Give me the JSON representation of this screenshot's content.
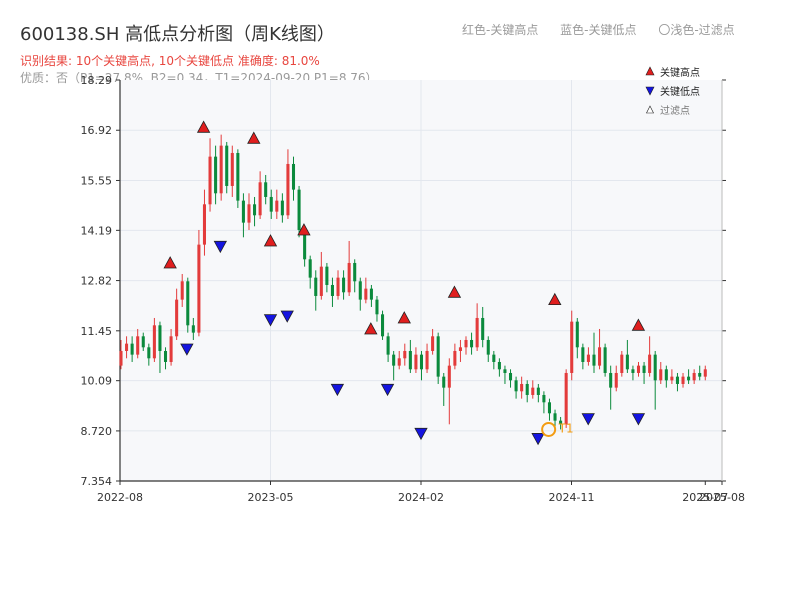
{
  "header": {
    "title": "600138.SH 高低点分析图（周K线图）",
    "subtitle": "识别结果: 10个关键高点, 10个关键低点   准确度: 81.0%",
    "note": "优质：否（P1=27.8%, B2=0.34，T1=2024-09-20 P1=8.76）",
    "legend_red": "红色-关键高点",
    "legend_blue": "蓝色-关键低点",
    "legend_light": "〇浅色-过滤点"
  },
  "colors": {
    "up": "#e33b3b",
    "down": "#0b8a3c",
    "high_marker": "#e01e1e",
    "low_marker": "#1414e0",
    "t1_ring": "#f39c12",
    "grid": "#e3e7ee",
    "plot_bg": "#f7f8fa",
    "axis": "#333333"
  },
  "chart_data": {
    "type": "candlestick",
    "title": "600138.SH 高低点分析图（周K线图）",
    "y_ticks": [
      "18.29",
      "16.92",
      "15.55",
      "14.19",
      "12.82",
      "11.45",
      "10.09",
      "8.720",
      "7.354"
    ],
    "ylim": [
      7.354,
      18.29
    ],
    "x_ticks": [
      "2022-08",
      "2023-05",
      "2024-02",
      "2024-11",
      "2025-07",
      "2025-08"
    ],
    "xlim": [
      "2022-08",
      "2025-08"
    ],
    "grid": true,
    "legend_position": "top-right",
    "legend": [
      "关键高点",
      "关键低点",
      "过滤点"
    ],
    "t1_label": "T1",
    "t1": {
      "date": "2024-09-20",
      "price": 8.76
    },
    "key_highs": [
      {
        "date": "2022-11",
        "price": 13.0
      },
      {
        "date": "2023-01",
        "price": 16.7
      },
      {
        "date": "2023-04",
        "price": 16.4
      },
      {
        "date": "2023-05",
        "price": 13.6
      },
      {
        "date": "2023-07",
        "price": 13.9
      },
      {
        "date": "2023-11",
        "price": 11.2
      },
      {
        "date": "2024-01",
        "price": 11.5
      },
      {
        "date": "2024-04",
        "price": 12.2
      },
      {
        "date": "2024-10",
        "price": 12.0
      },
      {
        "date": "2025-03",
        "price": 11.3
      }
    ],
    "key_lows": [
      {
        "date": "2022-12",
        "price": 11.2
      },
      {
        "date": "2023-02",
        "price": 14.0
      },
      {
        "date": "2023-05",
        "price": 12.0
      },
      {
        "date": "2023-06",
        "price": 12.1
      },
      {
        "date": "2023-09",
        "price": 10.1
      },
      {
        "date": "2023-12",
        "price": 10.1
      },
      {
        "date": "2024-02",
        "price": 8.9
      },
      {
        "date": "2024-09",
        "price": 8.76
      },
      {
        "date": "2024-12",
        "price": 9.3
      },
      {
        "date": "2025-03",
        "price": 9.3
      }
    ],
    "candles": [
      [
        10.5,
        10.9,
        11.2,
        10.4
      ],
      [
        10.9,
        11.1,
        11.3,
        10.7
      ],
      [
        11.1,
        10.8,
        11.3,
        10.6
      ],
      [
        10.8,
        11.3,
        11.5,
        10.7
      ],
      [
        11.3,
        11.0,
        11.4,
        10.9
      ],
      [
        11.0,
        10.7,
        11.1,
        10.5
      ],
      [
        10.7,
        11.6,
        11.8,
        10.6
      ],
      [
        11.6,
        10.9,
        11.7,
        10.3
      ],
      [
        10.9,
        10.6,
        11.0,
        10.4
      ],
      [
        10.6,
        11.3,
        11.5,
        10.5
      ],
      [
        11.3,
        12.3,
        12.6,
        11.2
      ],
      [
        12.3,
        12.8,
        13.0,
        12.1
      ],
      [
        12.8,
        11.6,
        12.9,
        11.4
      ],
      [
        11.6,
        11.4,
        11.8,
        11.2
      ],
      [
        11.4,
        13.8,
        14.2,
        11.3
      ],
      [
        13.8,
        14.9,
        15.3,
        13.5
      ],
      [
        14.9,
        16.2,
        16.7,
        14.7
      ],
      [
        16.2,
        15.2,
        16.5,
        14.9
      ],
      [
        15.2,
        16.5,
        16.8,
        15.0
      ],
      [
        16.5,
        15.4,
        16.6,
        15.2
      ],
      [
        15.4,
        16.3,
        16.5,
        15.1
      ],
      [
        16.3,
        15.0,
        16.4,
        14.8
      ],
      [
        15.0,
        14.4,
        15.2,
        14.0
      ],
      [
        14.4,
        14.9,
        15.2,
        14.2
      ],
      [
        14.9,
        14.6,
        15.1,
        14.3
      ],
      [
        14.6,
        15.5,
        15.8,
        14.5
      ],
      [
        15.5,
        15.1,
        15.7,
        14.9
      ],
      [
        15.1,
        14.7,
        15.3,
        14.5
      ],
      [
        14.7,
        15.0,
        15.3,
        14.5
      ],
      [
        15.0,
        14.6,
        15.2,
        14.4
      ],
      [
        14.6,
        16.0,
        16.4,
        14.5
      ],
      [
        16.0,
        15.3,
        16.2,
        15.0
      ],
      [
        15.3,
        14.2,
        15.4,
        14.0
      ],
      [
        14.2,
        13.4,
        14.3,
        13.2
      ],
      [
        13.4,
        12.9,
        13.5,
        12.6
      ],
      [
        12.9,
        12.4,
        13.1,
        12.0
      ],
      [
        12.4,
        13.2,
        13.6,
        12.3
      ],
      [
        13.2,
        12.7,
        13.3,
        12.5
      ],
      [
        12.7,
        12.4,
        12.9,
        12.1
      ],
      [
        12.4,
        12.9,
        13.1,
        12.3
      ],
      [
        12.9,
        12.5,
        13.1,
        12.3
      ],
      [
        12.5,
        13.3,
        13.9,
        12.4
      ],
      [
        13.3,
        12.8,
        13.4,
        12.5
      ],
      [
        12.8,
        12.3,
        12.9,
        12.0
      ],
      [
        12.3,
        12.6,
        12.9,
        12.2
      ],
      [
        12.6,
        12.3,
        12.7,
        12.1
      ],
      [
        12.3,
        11.9,
        12.4,
        11.7
      ],
      [
        11.9,
        11.3,
        12.0,
        11.2
      ],
      [
        11.3,
        10.8,
        11.4,
        10.6
      ],
      [
        10.8,
        10.5,
        10.9,
        10.1
      ],
      [
        10.5,
        10.7,
        10.9,
        10.4
      ],
      [
        10.7,
        10.9,
        11.1,
        10.5
      ],
      [
        10.9,
        10.4,
        11.2,
        10.3
      ],
      [
        10.4,
        10.8,
        11.0,
        10.3
      ],
      [
        10.8,
        10.4,
        10.9,
        10.1
      ],
      [
        10.4,
        10.9,
        11.1,
        10.3
      ],
      [
        10.9,
        11.3,
        11.5,
        10.8
      ],
      [
        11.3,
        10.2,
        11.4,
        10.0
      ],
      [
        10.2,
        9.9,
        10.3,
        9.4
      ],
      [
        9.9,
        10.5,
        10.7,
        8.9
      ],
      [
        10.5,
        10.9,
        11.1,
        10.4
      ],
      [
        10.9,
        11.0,
        11.2,
        10.6
      ],
      [
        11.0,
        11.2,
        11.3,
        10.8
      ],
      [
        11.2,
        11.0,
        11.4,
        10.8
      ],
      [
        11.0,
        11.8,
        12.2,
        10.9
      ],
      [
        11.8,
        11.2,
        12.1,
        11.0
      ],
      [
        11.2,
        10.8,
        11.3,
        10.6
      ],
      [
        10.8,
        10.6,
        10.9,
        10.4
      ],
      [
        10.6,
        10.4,
        10.7,
        10.2
      ],
      [
        10.4,
        10.3,
        10.5,
        10.0
      ],
      [
        10.3,
        10.1,
        10.4,
        9.9
      ],
      [
        10.1,
        9.8,
        10.2,
        9.6
      ],
      [
        9.8,
        10.0,
        10.2,
        9.6
      ],
      [
        10.0,
        9.7,
        10.1,
        9.5
      ],
      [
        9.7,
        9.9,
        10.1,
        9.6
      ],
      [
        9.9,
        9.7,
        10.0,
        9.5
      ],
      [
        9.7,
        9.5,
        9.8,
        9.2
      ],
      [
        9.5,
        9.2,
        9.6,
        9.0
      ],
      [
        9.2,
        9.0,
        9.3,
        8.8
      ],
      [
        9.0,
        8.9,
        9.1,
        8.76
      ],
      [
        8.9,
        10.3,
        10.4,
        8.8
      ],
      [
        10.3,
        11.7,
        12.0,
        10.1
      ],
      [
        11.7,
        11.0,
        11.8,
        10.7
      ],
      [
        11.0,
        10.6,
        11.1,
        10.4
      ],
      [
        10.6,
        10.8,
        11.0,
        10.5
      ],
      [
        10.8,
        10.5,
        11.4,
        10.3
      ],
      [
        10.5,
        11.0,
        11.5,
        10.4
      ],
      [
        11.0,
        10.3,
        11.1,
        10.2
      ],
      [
        10.3,
        9.9,
        10.5,
        9.3
      ],
      [
        9.9,
        10.3,
        10.5,
        9.8
      ],
      [
        10.3,
        10.8,
        10.9,
        10.2
      ],
      [
        10.8,
        10.4,
        11.2,
        10.3
      ],
      [
        10.4,
        10.3,
        10.5,
        10.1
      ],
      [
        10.3,
        10.5,
        10.6,
        10.2
      ],
      [
        10.5,
        10.3,
        10.6,
        10.0
      ],
      [
        10.3,
        10.8,
        11.3,
        10.2
      ],
      [
        10.8,
        10.1,
        10.9,
        9.3
      ],
      [
        10.1,
        10.4,
        10.6,
        10.0
      ],
      [
        10.4,
        10.1,
        10.5,
        9.9
      ],
      [
        10.1,
        10.2,
        10.4,
        10.0
      ],
      [
        10.2,
        10.0,
        10.3,
        9.8
      ],
      [
        10.0,
        10.2,
        10.3,
        9.9
      ],
      [
        10.2,
        10.1,
        10.4,
        10.0
      ],
      [
        10.1,
        10.3,
        10.4,
        10.0
      ],
      [
        10.3,
        10.2,
        10.5,
        10.1
      ],
      [
        10.2,
        10.4,
        10.5,
        10.1
      ]
    ]
  }
}
